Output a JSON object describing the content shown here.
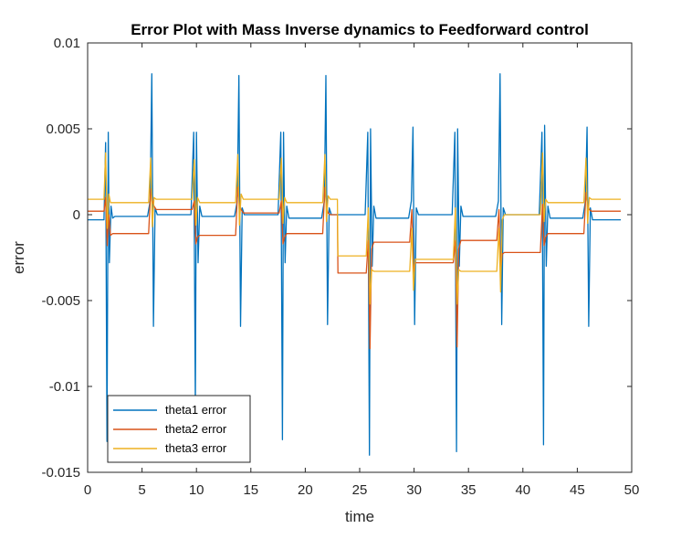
{
  "chart_data": {
    "type": "line",
    "title": "Error Plot with Mass Inverse dynamics to Feedforward control",
    "xlabel": "time",
    "ylabel": "error",
    "xlim": [
      0,
      50
    ],
    "ylim": [
      -0.015,
      0.01
    ],
    "xticks": [
      0,
      5,
      10,
      15,
      20,
      25,
      30,
      35,
      40,
      45,
      50
    ],
    "xtick_labels": [
      "0",
      "5",
      "10",
      "15",
      "20",
      "25",
      "30",
      "35",
      "40",
      "45",
      "50"
    ],
    "yticks": [
      -0.015,
      -0.01,
      -0.005,
      0,
      0.005,
      0.01
    ],
    "ytick_labels": [
      "-0.015",
      "-0.01",
      "-0.005",
      "0",
      "0.005",
      "0.01"
    ],
    "grid": false,
    "legend_position": "bottom-left",
    "series": [
      {
        "name": "theta1 error",
        "color": "#0072BD",
        "x": [
          0,
          1.5,
          1.65,
          1.78,
          1.9,
          2.0,
          2.15,
          2.3,
          2.5,
          5.5,
          5.75,
          5.9,
          6.05,
          6.2,
          6.4,
          9.5,
          9.75,
          9.9,
          10.0,
          10.15,
          10.3,
          10.5,
          13.5,
          13.75,
          13.9,
          14.05,
          14.2,
          14.4,
          17.5,
          17.75,
          17.9,
          18.0,
          18.15,
          18.3,
          18.5,
          21.5,
          21.75,
          21.9,
          22.05,
          22.2,
          22.4,
          25.5,
          25.75,
          25.9,
          26.0,
          26.15,
          26.3,
          26.5,
          29.5,
          29.75,
          29.9,
          30.05,
          30.2,
          30.4,
          33.5,
          33.75,
          33.9,
          34.0,
          34.15,
          34.3,
          34.5,
          37.5,
          37.75,
          37.9,
          38.05,
          38.2,
          38.4,
          41.5,
          41.75,
          41.9,
          42.0,
          42.15,
          42.3,
          42.5,
          45.5,
          45.75,
          45.9,
          46.05,
          46.2,
          46.4,
          49
        ],
        "y": [
          -0.0003,
          -0.0003,
          0.0042,
          -0.0132,
          0.0048,
          -0.0028,
          0.0005,
          -0.0002,
          -0.0001,
          -0.0001,
          0.0008,
          0.0082,
          -0.0065,
          0.0004,
          0.0,
          0.0,
          0.0048,
          -0.0112,
          0.0048,
          -0.0028,
          0.0005,
          -0.0001,
          -0.0001,
          0.0008,
          0.0081,
          -0.0065,
          0.0004,
          0.0,
          0.0,
          0.0048,
          -0.0131,
          0.0048,
          -0.0028,
          0.0005,
          -0.0002,
          -0.0002,
          0.0008,
          0.0081,
          -0.0064,
          0.0004,
          0.0,
          0.0,
          0.0048,
          -0.014,
          0.005,
          -0.003,
          0.0005,
          -0.0002,
          -0.0002,
          0.0008,
          0.0051,
          -0.0064,
          0.0004,
          0.0,
          0.0,
          0.0048,
          -0.0138,
          0.005,
          -0.003,
          0.0005,
          -0.0001,
          -0.0001,
          0.0008,
          0.0082,
          -0.0064,
          0.0004,
          0.0,
          0.0,
          0.0048,
          -0.0134,
          0.0052,
          -0.003,
          0.0005,
          -0.0002,
          -0.0002,
          0.0008,
          0.0051,
          -0.0065,
          0.0004,
          -0.0003,
          -0.0003
        ]
      },
      {
        "name": "theta2 error",
        "color": "#D95319",
        "x": [
          0,
          1.5,
          1.65,
          1.8,
          1.95,
          2.1,
          2.3,
          5.6,
          5.8,
          5.95,
          6.1,
          6.3,
          9.6,
          9.8,
          9.95,
          10.1,
          10.3,
          13.6,
          13.8,
          13.95,
          14.1,
          14.3,
          17.6,
          17.8,
          17.95,
          18.1,
          18.3,
          21.6,
          21.8,
          21.95,
          22.1,
          22.3,
          22.95,
          23.0,
          25.6,
          25.8,
          25.95,
          26.1,
          26.3,
          29.6,
          29.8,
          29.95,
          30.1,
          30.3,
          33.6,
          33.8,
          33.95,
          34.1,
          34.3,
          37.6,
          37.8,
          37.95,
          38.1,
          38.3,
          41.6,
          41.8,
          41.95,
          42.1,
          42.3,
          45.6,
          45.8,
          45.95,
          46.1,
          46.3,
          49
        ],
        "y": [
          0.0002,
          0.0002,
          0.001,
          -0.0018,
          0.0,
          -0.0012,
          -0.0011,
          -0.0011,
          0.0015,
          0.0008,
          0.0005,
          0.0003,
          0.0003,
          0.0008,
          -0.0017,
          -0.0013,
          -0.0012,
          -0.0012,
          0.0016,
          0.0006,
          0.0003,
          0.0001,
          0.0001,
          0.0008,
          -0.0017,
          -0.0013,
          -0.0011,
          -0.0011,
          0.0016,
          0.0005,
          0.0001,
          0.0,
          0.0,
          -0.0034,
          -0.0034,
          -0.0015,
          -0.0078,
          -0.002,
          -0.0016,
          -0.0016,
          0.0003,
          -0.0033,
          -0.0028,
          -0.0028,
          -0.0028,
          -0.0015,
          -0.0077,
          -0.002,
          -0.0015,
          -0.0015,
          0.0003,
          -0.0033,
          -0.0023,
          -0.0022,
          -0.0022,
          0.0006,
          -0.0018,
          -0.0013,
          -0.0011,
          -0.0011,
          0.0013,
          0.0005,
          0.0003,
          0.0002,
          0.0002
        ]
      },
      {
        "name": "theta3 error",
        "color": "#EDB120",
        "x": [
          0,
          1.5,
          1.65,
          1.8,
          1.95,
          2.1,
          2.3,
          5.6,
          5.8,
          5.95,
          6.1,
          6.3,
          9.6,
          9.8,
          9.95,
          10.1,
          10.3,
          13.6,
          13.8,
          13.95,
          14.1,
          14.3,
          17.6,
          17.8,
          17.95,
          18.1,
          18.3,
          21.6,
          21.8,
          21.95,
          22.1,
          22.3,
          22.95,
          23.0,
          25.6,
          25.8,
          25.95,
          26.1,
          26.3,
          29.6,
          29.8,
          29.95,
          30.1,
          30.3,
          33.6,
          33.8,
          33.95,
          34.1,
          34.3,
          37.6,
          37.8,
          37.95,
          38.1,
          38.3,
          41.6,
          41.8,
          41.95,
          42.1,
          42.3,
          45.6,
          45.8,
          45.95,
          46.1,
          46.3,
          49
        ],
        "y": [
          0.0009,
          0.0009,
          0.0036,
          -0.0008,
          0.0012,
          0.0007,
          0.0007,
          0.0007,
          0.0033,
          -0.0007,
          0.001,
          0.0009,
          0.0009,
          0.0032,
          -0.0006,
          0.001,
          0.0007,
          0.0007,
          0.0035,
          -0.0006,
          0.0012,
          0.0009,
          0.0009,
          0.0033,
          -0.0005,
          0.001,
          0.0007,
          0.0007,
          0.0035,
          -0.0004,
          0.0011,
          0.0009,
          0.0009,
          -0.0024,
          -0.0024,
          0.0004,
          -0.0052,
          -0.0032,
          -0.0033,
          -0.0033,
          -0.0008,
          -0.0044,
          -0.0026,
          -0.0026,
          -0.0026,
          0.0004,
          -0.0052,
          -0.0032,
          -0.0033,
          -0.0033,
          -0.0008,
          -0.0045,
          -0.0003,
          0.0,
          0.0,
          0.0036,
          -0.0004,
          0.0009,
          0.0007,
          0.0007,
          0.0033,
          -0.0005,
          0.001,
          0.0009,
          0.0009
        ]
      }
    ]
  }
}
